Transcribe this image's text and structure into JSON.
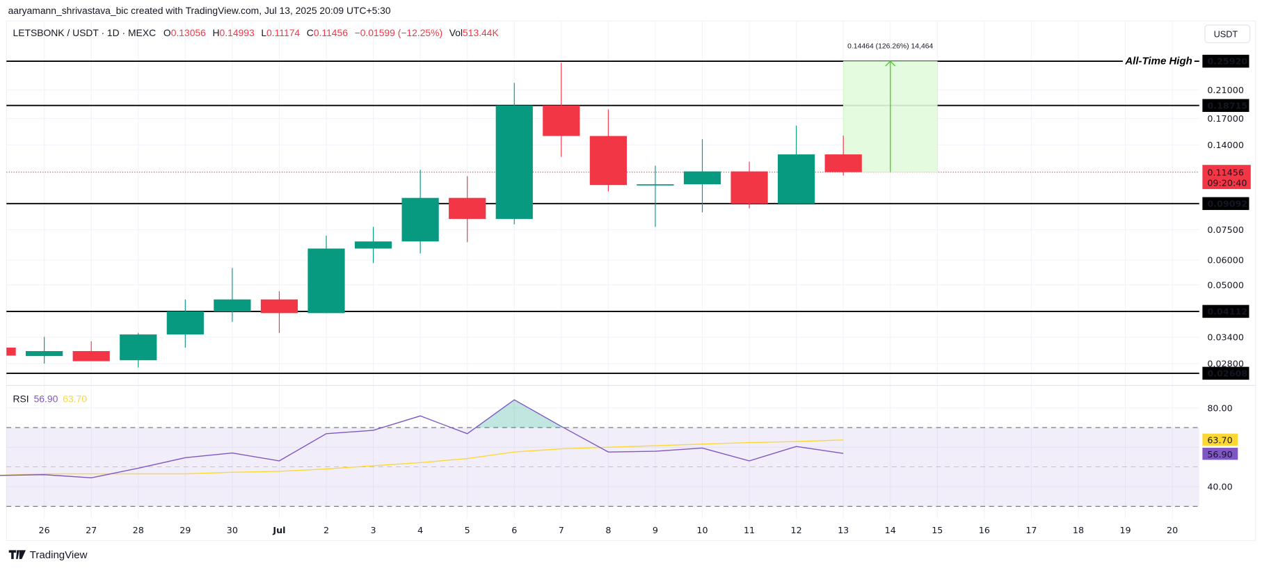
{
  "header": {
    "attribution": "aaryamann_shrivastava_bic created with TradingView.com, Jul 13, 2025 20:09 UTC+5:30",
    "symbol": "LETSBONK / USDT · 1D · MEXC",
    "o_label": "O",
    "o_value": "0.13056",
    "h_label": "H",
    "h_value": "0.14993",
    "l_label": "L",
    "l_value": "0.11174",
    "c_label": "C",
    "c_value": "0.11456",
    "change": "−0.01599 (−12.25%)",
    "vol_label": "Vol",
    "vol_value": "513.44K"
  },
  "currency_button": "USDT",
  "footer": {
    "logo_text": "TradingView"
  },
  "colors": {
    "up": "#089981",
    "down": "#f23645",
    "rsi": "#7e57c2",
    "rsi_ma": "#fdd835",
    "measure_fill": "#e1fbdb",
    "measure_line": "#4cd32a",
    "level": "#000000"
  },
  "chart_data": {
    "type": "candlestick",
    "scale": "log",
    "grid": true,
    "dates": [
      "26",
      "27",
      "28",
      "29",
      "30",
      "Jul",
      "2",
      "3",
      "4",
      "5",
      "6",
      "7",
      "8",
      "9",
      "10",
      "11",
      "12",
      "13",
      "14",
      "15",
      "16",
      "17",
      "18",
      "19",
      "20"
    ],
    "candles": [
      {
        "date": "Jun 25",
        "o": 0.0315,
        "h": 0.0315,
        "l": 0.0297,
        "c": 0.0297
      },
      {
        "date": "Jun 26",
        "o": 0.0296,
        "h": 0.0341,
        "l": 0.028,
        "c": 0.0307
      },
      {
        "date": "Jun 27",
        "o": 0.0307,
        "h": 0.033,
        "l": 0.0285,
        "c": 0.0285
      },
      {
        "date": "Jun 28",
        "o": 0.0287,
        "h": 0.0351,
        "l": 0.0272,
        "c": 0.0347
      },
      {
        "date": "Jun 29",
        "o": 0.0347,
        "h": 0.0449,
        "l": 0.0315,
        "c": 0.0411
      },
      {
        "date": "Jun 30",
        "o": 0.0411,
        "h": 0.0566,
        "l": 0.0381,
        "c": 0.0449
      },
      {
        "date": "Jul 1",
        "o": 0.0449,
        "h": 0.0477,
        "l": 0.0351,
        "c": 0.0406
      },
      {
        "date": "Jul 2",
        "o": 0.0406,
        "h": 0.0718,
        "l": 0.0406,
        "c": 0.0653
      },
      {
        "date": "Jul 3",
        "o": 0.0653,
        "h": 0.0766,
        "l": 0.0587,
        "c": 0.0688
      },
      {
        "date": "Jul 4",
        "o": 0.0688,
        "h": 0.1166,
        "l": 0.063,
        "c": 0.0948
      },
      {
        "date": "Jul 5",
        "o": 0.0948,
        "h": 0.1112,
        "l": 0.0684,
        "c": 0.0812
      },
      {
        "date": "Jul 6",
        "o": 0.0812,
        "h": 0.2209,
        "l": 0.078,
        "c": 0.18715
      },
      {
        "date": "Jul 7",
        "o": 0.18715,
        "h": 0.2562,
        "l": 0.1282,
        "c": 0.1495
      },
      {
        "date": "Jul 8",
        "o": 0.1495,
        "h": 0.1817,
        "l": 0.0994,
        "c": 0.1042
      },
      {
        "date": "Jul 9",
        "o": 0.104,
        "h": 0.1201,
        "l": 0.0766,
        "c": 0.1048
      },
      {
        "date": "Jul 10",
        "o": 0.1048,
        "h": 0.146,
        "l": 0.0852,
        "c": 0.1152
      },
      {
        "date": "Jul 11",
        "o": 0.1152,
        "h": 0.1237,
        "l": 0.0878,
        "c": 0.0909
      },
      {
        "date": "Jul 12",
        "o": 0.0909,
        "h": 0.1614,
        "l": 0.0909,
        "c": 0.13056
      },
      {
        "date": "Jul 13",
        "o": 0.13056,
        "h": 0.14993,
        "l": 0.11174,
        "c": 0.11456
      }
    ],
    "price_ticks": [
      "0.21000",
      "0.17000",
      "0.14000",
      "0.07500",
      "0.06000",
      "0.05000",
      "0.03400",
      "0.02800"
    ],
    "levels": [
      {
        "price": "0.25920",
        "label": "All-Time High"
      },
      {
        "price": "0.18715",
        "label": ""
      },
      {
        "price": "0.09092",
        "label": ""
      },
      {
        "price": "0.04112",
        "label": ""
      },
      {
        "price": "0.02608",
        "label": ""
      }
    ],
    "last_price": {
      "value": "0.11456",
      "countdown": "09:20:40"
    },
    "measure": {
      "from_date": "Jul 13",
      "to_date": "Jul 15",
      "low": 0.11456,
      "high": 0.2592,
      "label": "0.14464 (126.26%) 14,464"
    },
    "rsi": {
      "title": "RSI",
      "value_label": "56.90",
      "ma_label": "63.70",
      "ticks": [
        "80.00",
        "40.00"
      ],
      "bands": [
        70,
        50,
        30
      ],
      "range": [
        20,
        92
      ],
      "rsi_values": [
        45.7,
        46.1,
        44.5,
        49.4,
        54.7,
        57.1,
        53.1,
        66.9,
        68.6,
        75.9,
        66.9,
        84.1,
        70.6,
        57.6,
        58.0,
        59.6,
        53.1,
        60.4,
        56.9
      ],
      "ma_values": [
        45.7,
        46.5,
        46.5,
        46.5,
        46.5,
        47.3,
        47.8,
        49.0,
        50.6,
        52.2,
        54.3,
        57.6,
        59.2,
        60.0,
        60.8,
        61.6,
        62.4,
        62.9,
        63.7
      ]
    }
  }
}
